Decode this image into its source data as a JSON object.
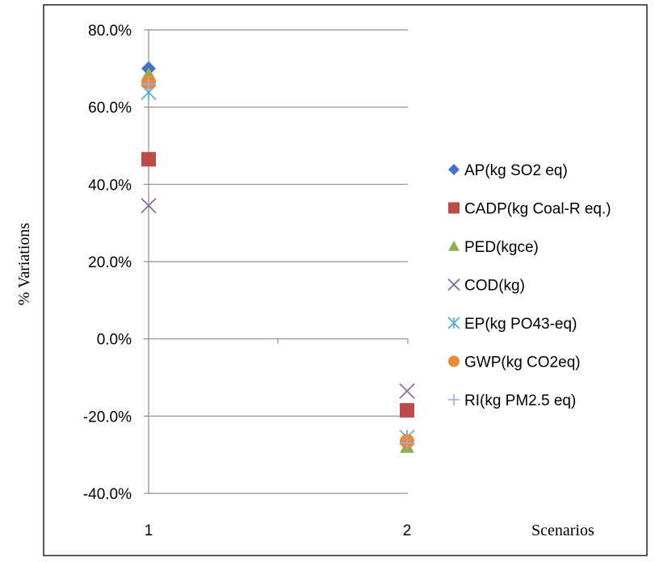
{
  "chart_data": {
    "type": "scatter",
    "title": "",
    "xlabel": "Scenarios",
    "ylabel": "% Variations",
    "x": [
      1,
      2
    ],
    "ylim": [
      -40,
      80
    ],
    "y_ticks": [
      "-40.0%",
      "-20.0%",
      "0.0%",
      "20.0%",
      "40.0%",
      "60.0%",
      "80.0%"
    ],
    "y_tick_values": [
      -40,
      -20,
      0,
      20,
      40,
      60,
      80
    ],
    "x_ticks": [
      "1",
      "2"
    ],
    "grid": true,
    "legend_position": "right",
    "series": [
      {
        "name": "AP(kg SO2 eq)",
        "values": [
          70.0,
          -27.0
        ],
        "marker": "diamond",
        "color": "#4472C4"
      },
      {
        "name": "CADP(kg Coal-R eq.)",
        "values": [
          46.5,
          -18.5
        ],
        "marker": "square",
        "color": "#BE4B48"
      },
      {
        "name": "PED(kgce)",
        "values": [
          68.5,
          -28.0
        ],
        "marker": "triangle",
        "color": "#8CB04B"
      },
      {
        "name": "COD(kg)",
        "values": [
          34.5,
          -13.5
        ],
        "marker": "x",
        "color": "#7D5FA0"
      },
      {
        "name": "EP(kg PO43-eq)",
        "values": [
          63.8,
          -25.5
        ],
        "marker": "star",
        "color": "#4BACC6"
      },
      {
        "name": "GWP(kg CO2eq)",
        "values": [
          66.5,
          -26.5
        ],
        "marker": "circle",
        "color": "#E8893B"
      },
      {
        "name": "RI(kg PM2.5 eq)",
        "values": [
          66.0,
          -27.0
        ],
        "marker": "plus",
        "color": "#93B1DC"
      }
    ]
  }
}
